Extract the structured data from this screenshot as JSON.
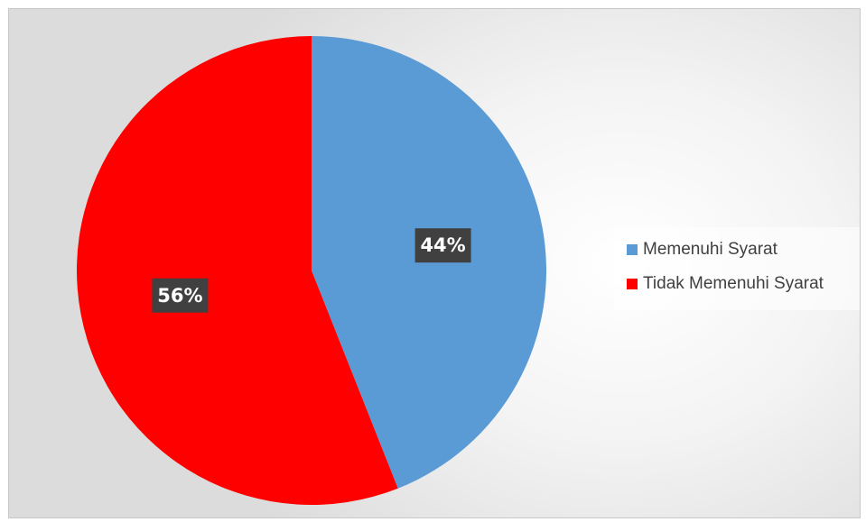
{
  "chart_data": {
    "type": "pie",
    "title": "",
    "legend_position": "right",
    "slices": [
      {
        "name": "Memenuhi Syarat",
        "value": 44,
        "label": "44%",
        "color": "#5b9bd5"
      },
      {
        "name": "Tidak Memenuhi Syarat",
        "value": 56,
        "label": "56%",
        "color": "#ff0000"
      }
    ]
  }
}
